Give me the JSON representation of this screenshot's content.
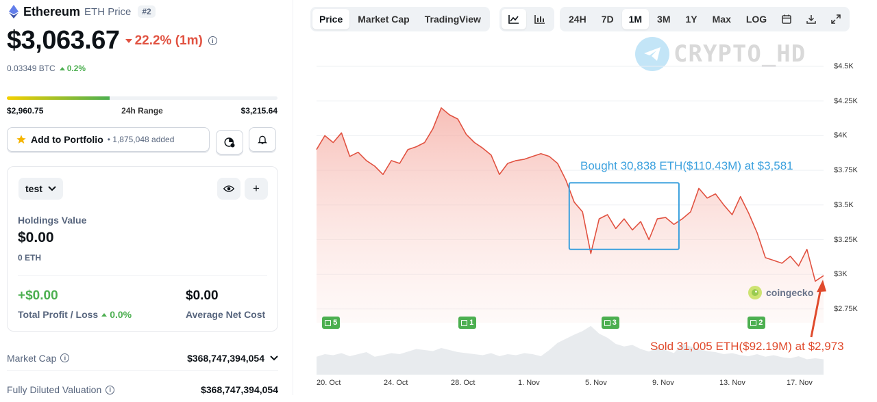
{
  "coin": {
    "name": "Ethereum",
    "symbol": "ETH Price",
    "rank": "#2",
    "price": "$3,063.67",
    "change": "22.2% (1m)",
    "btc_price": "0.03349 BTC",
    "btc_change": "0.2%"
  },
  "range": {
    "low": "$2,960.75",
    "label": "24h Range",
    "high": "$3,215.64",
    "fill_fraction": 0.38
  },
  "portfolio": {
    "label": "Add to Portfolio",
    "count": "• 1,875,048 added"
  },
  "holdings": {
    "portfolio_name": "test",
    "value_label": "Holdings Value",
    "value": "$0.00",
    "eth": "0 ETH",
    "pl_value": "+$0.00",
    "pl_label": "Total Profit / Loss",
    "pl_pct": "0.0%",
    "anc_value": "$0.00",
    "anc_label": "Average Net Cost"
  },
  "stats": [
    {
      "label": "Market Cap",
      "value": "$368,747,394,054"
    },
    {
      "label": "Fully Diluted Valuation",
      "value": "$368,747,394,054"
    }
  ],
  "toolbar": {
    "type_tabs": [
      "Price",
      "Market Cap",
      "TradingView"
    ],
    "range_tabs": [
      "24H",
      "7D",
      "1M",
      "3M",
      "1Y",
      "Max",
      "LOG"
    ],
    "active_type": "Price",
    "active_range": "1M"
  },
  "watermark": "CRYPTO_HD",
  "brand": "coingecko",
  "annotations": {
    "buy": "Bought 30,838 ETH($110.43M) at $3,581",
    "sell": "Sold 31,005 ETH($92.19M) at $2,973"
  },
  "events": [
    "5",
    "1",
    "3",
    "2"
  ],
  "colors": {
    "line": "#e15241",
    "up": "#4caf50",
    "buy_box": "#3aa0de",
    "sell": "#e04a2c"
  },
  "chart_data": {
    "type": "area",
    "yticks": [
      "$4.5K",
      "$4.25K",
      "$4K",
      "$3.75K",
      "$3.5K",
      "$3.25K",
      "$3K",
      "$2.75K"
    ],
    "ytick_values": [
      4500,
      4250,
      4000,
      3750,
      3500,
      3250,
      3000,
      2750
    ],
    "ylim": [
      2650,
      4600
    ],
    "xticks": [
      "20. Oct",
      "24. Oct",
      "28. Oct",
      "1. Nov",
      "5. Nov",
      "9. Nov",
      "13. Nov",
      "17. Nov"
    ],
    "x": [
      0,
      0.5,
      1,
      1.5,
      2,
      2.5,
      3,
      3.5,
      4,
      4.5,
      5,
      5.5,
      6,
      6.5,
      7,
      7.5,
      8,
      8.5,
      9,
      9.5,
      10,
      10.5,
      11,
      11.5,
      12,
      12.5,
      13,
      13.5,
      14,
      14.5,
      15,
      15.5,
      16,
      16.5,
      17,
      17.5,
      18,
      18.5,
      19,
      19.5,
      20,
      20.5,
      21,
      21.5,
      22,
      22.5,
      23,
      23.5,
      24,
      24.5,
      25,
      25.5,
      26,
      26.5,
      27,
      27.5,
      28,
      28.5,
      29,
      29.5,
      30,
      30.5
    ],
    "price": [
      3900,
      4000,
      3950,
      4020,
      3850,
      3880,
      3820,
      3780,
      3720,
      3820,
      3800,
      3900,
      3920,
      3950,
      4050,
      4200,
      4150,
      4120,
      4010,
      3950,
      3910,
      3860,
      3720,
      3800,
      3820,
      3830,
      3850,
      3870,
      3850,
      3800,
      3680,
      3520,
      3450,
      3150,
      3400,
      3430,
      3330,
      3400,
      3320,
      3380,
      3250,
      3400,
      3410,
      3360,
      3400,
      3450,
      3620,
      3550,
      3580,
      3500,
      3430,
      3560,
      3440,
      3300,
      3120,
      3100,
      3080,
      3130,
      3060,
      3180,
      2950,
      2990
    ],
    "volume": [
      0.35,
      0.4,
      0.38,
      0.42,
      0.36,
      0.4,
      0.44,
      0.35,
      0.38,
      0.42,
      0.4,
      0.45,
      0.5,
      0.48,
      0.46,
      0.52,
      0.48,
      0.44,
      0.42,
      0.4,
      0.38,
      0.42,
      0.36,
      0.4,
      0.38,
      0.42,
      0.4,
      0.36,
      0.48,
      0.62,
      0.7,
      0.78,
      0.85,
      0.95,
      0.8,
      0.72,
      0.6,
      0.55,
      0.58,
      0.5,
      0.45,
      0.52,
      0.48,
      0.42,
      0.6,
      0.55,
      0.5,
      0.46,
      0.44,
      0.4,
      0.42,
      0.38,
      0.36,
      0.4,
      0.35,
      0.38,
      0.34,
      0.32,
      0.36,
      0.3,
      0.32,
      0.3
    ],
    "buy_box": {
      "x0": 15.2,
      "x1": 21.8,
      "y0": 3180,
      "y1": 3660
    },
    "sell_point": {
      "x": 30.5,
      "y": 2990
    },
    "event_x": [
      0.5,
      8.7,
      17.3,
      26.1
    ]
  }
}
